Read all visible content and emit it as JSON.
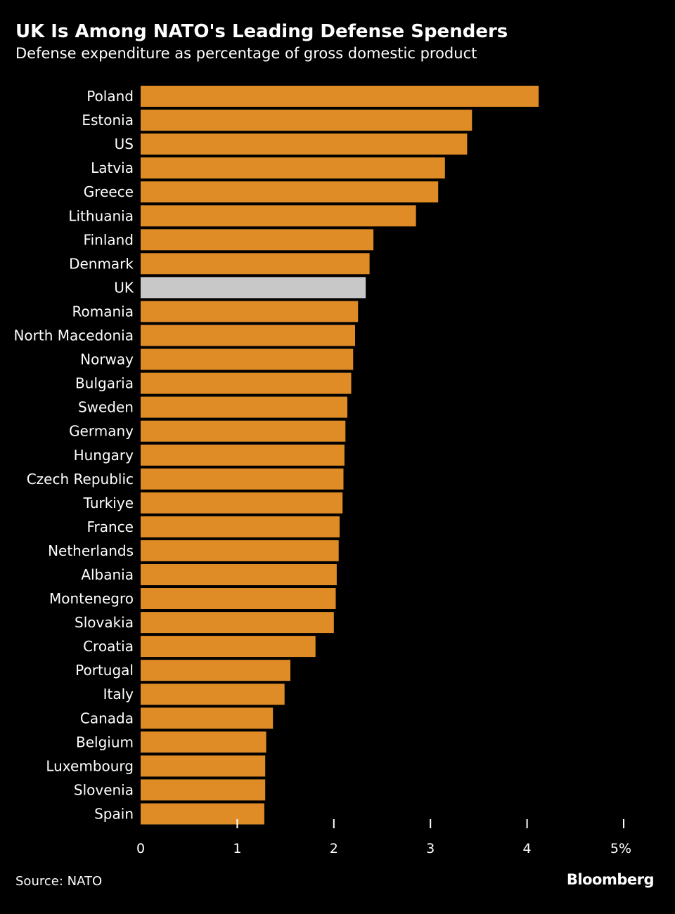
{
  "colors": {
    "bar": "#e08c26",
    "highlight": "#c8c8c8",
    "axis": "#ffffff",
    "background": "#000000"
  },
  "source_text": "Source: NATO",
  "brand": "Bloomberg",
  "chart_data": {
    "type": "bar",
    "orientation": "horizontal",
    "title": "UK Is Among NATO's Leading Defense Spenders",
    "subtitle": "Defense expenditure as percentage of gross domestic product",
    "xlabel": "",
    "ylabel": "",
    "xlim": [
      0,
      5
    ],
    "ticks": [
      "0",
      "1",
      "2",
      "3",
      "4",
      "5%"
    ],
    "grid": false,
    "highlight": "UK",
    "categories": [
      "Poland",
      "Estonia",
      "US",
      "Latvia",
      "Greece",
      "Lithuania",
      "Finland",
      "Denmark",
      "UK",
      "Romania",
      "North Macedonia",
      "Norway",
      "Bulgaria",
      "Sweden",
      "Germany",
      "Hungary",
      "Czech Republic",
      "Turkiye",
      "France",
      "Netherlands",
      "Albania",
      "Montenegro",
      "Slovakia",
      "Croatia",
      "Portugal",
      "Italy",
      "Canada",
      "Belgium",
      "Luxembourg",
      "Slovenia",
      "Spain"
    ],
    "values": [
      4.12,
      3.43,
      3.38,
      3.15,
      3.08,
      2.85,
      2.41,
      2.37,
      2.33,
      2.25,
      2.22,
      2.2,
      2.18,
      2.14,
      2.12,
      2.11,
      2.1,
      2.09,
      2.06,
      2.05,
      2.03,
      2.02,
      2.0,
      1.81,
      1.55,
      1.49,
      1.37,
      1.3,
      1.29,
      1.29,
      1.28
    ]
  }
}
